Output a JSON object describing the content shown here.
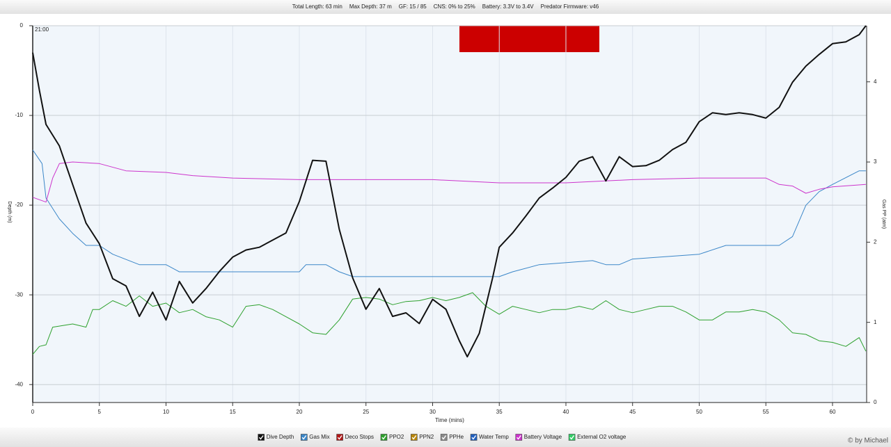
{
  "chart_data": {
    "type": "line",
    "header": [
      "Total Length: 63 min",
      "Max Depth: 37 m",
      "GF: 15 / 85",
      "CNS: 0% to 25%",
      "Battery: 3.3V to 3.4V",
      "Predator Firmware: v46"
    ],
    "start_time": "21:00",
    "xlabel": "Time (mins)",
    "ylabel": "Depth (m)",
    "y2label": "Gas PP (atm)",
    "xlim": [
      0,
      62.56
    ],
    "xticks": [
      0,
      5,
      10,
      15,
      20,
      25,
      30,
      35,
      40,
      45,
      50,
      55,
      60
    ],
    "ylim": [
      -42,
      0
    ],
    "yticks": [
      -40,
      -30,
      -20,
      -10,
      0
    ],
    "y2lim": [
      0,
      4.7
    ],
    "y2ticks": [
      0,
      1,
      2,
      3,
      4
    ],
    "grid": true,
    "series": [
      {
        "name": "Dive Depth",
        "color": "#111111",
        "x": [
          0,
          0.5,
          1,
          2,
          3,
          4,
          5,
          6,
          7,
          8,
          9,
          10,
          11,
          12,
          13,
          14,
          15,
          16,
          17,
          18,
          19,
          20,
          21,
          22,
          23,
          24,
          25,
          26,
          27,
          28,
          29,
          30,
          31,
          32,
          32.6,
          33.5,
          34.5,
          35,
          36,
          37,
          38,
          39,
          40,
          41,
          42,
          43,
          44,
          45,
          46,
          47,
          48,
          49,
          50,
          51,
          52,
          53,
          54,
          55,
          56,
          57,
          58,
          59,
          60,
          61,
          62,
          62.5
        ],
        "values": [
          -3,
          -7.2,
          -11,
          -13.4,
          -17.7,
          -22,
          -24.3,
          -28.2,
          -29,
          -32.4,
          -29.7,
          -32.8,
          -28.5,
          -30.9,
          -29.3,
          -27.4,
          -25.8,
          -25,
          -24.7,
          -23.9,
          -23.1,
          -19.6,
          -15,
          -15.1,
          -22.7,
          -28.1,
          -31.6,
          -29.3,
          -32.4,
          -32,
          -33.2,
          -30.5,
          -31.6,
          -35.1,
          -36.9,
          -34.3,
          -28.1,
          -24.7,
          -23.1,
          -21.2,
          -19.2,
          -18.1,
          -16.9,
          -15.1,
          -14.6,
          -17.3,
          -14.6,
          -15.7,
          -15.6,
          -15,
          -13.8,
          -13,
          -10.7,
          -9.7,
          -9.9,
          -9.7,
          -9.9,
          -10.3,
          -9.1,
          -6.3,
          -4.5,
          -3.2,
          -2,
          -1.8,
          -1,
          0
        ]
      },
      {
        "name": "Gas Mix",
        "color": "#3a86c8",
        "axis": "y2",
        "x": [
          0,
          0.7,
          1,
          2,
          3,
          4,
          5,
          6,
          8,
          10,
          11,
          20,
          20.5,
          22,
          23,
          24,
          35,
          36,
          38,
          42,
          43,
          44,
          45,
          50,
          52,
          55,
          56,
          57,
          58,
          59,
          60,
          62,
          62.5
        ],
        "values": [
          3.15,
          2.98,
          2.55,
          2.29,
          2.11,
          1.96,
          1.96,
          1.85,
          1.72,
          1.72,
          1.63,
          1.63,
          1.72,
          1.72,
          1.63,
          1.57,
          1.57,
          1.63,
          1.72,
          1.77,
          1.72,
          1.72,
          1.79,
          1.85,
          1.96,
          1.96,
          1.96,
          2.07,
          2.46,
          2.63,
          2.72,
          2.89,
          2.89
        ]
      },
      {
        "name": "Deco Stops",
        "color": "#b01818"
      },
      {
        "name": "PPO2",
        "color": "#2ca02c",
        "axis": "y2",
        "x": [
          0,
          0.5,
          1,
          1.5,
          3,
          4,
          4.5,
          5,
          6,
          7,
          8,
          9,
          10,
          11,
          12,
          13,
          14,
          15,
          16,
          17,
          18,
          19,
          20,
          21,
          22,
          23,
          24,
          25,
          26,
          27,
          28,
          29,
          30,
          31,
          32,
          33,
          34,
          35,
          36,
          37,
          38,
          39,
          40,
          41,
          42,
          43,
          44,
          45,
          46,
          47,
          48,
          49,
          50,
          51,
          52,
          53,
          54,
          55,
          56,
          57,
          58,
          59,
          60,
          61,
          62,
          62.5
        ],
        "values": [
          0.6,
          0.7,
          0.72,
          0.94,
          0.98,
          0.94,
          1.16,
          1.16,
          1.27,
          1.2,
          1.33,
          1.2,
          1.24,
          1.12,
          1.16,
          1.07,
          1.03,
          0.94,
          1.2,
          1.22,
          1.16,
          1.07,
          0.98,
          0.87,
          0.85,
          1.03,
          1.29,
          1.31,
          1.29,
          1.22,
          1.26,
          1.27,
          1.31,
          1.27,
          1.31,
          1.37,
          1.2,
          1.1,
          1.2,
          1.16,
          1.12,
          1.16,
          1.16,
          1.2,
          1.16,
          1.27,
          1.16,
          1.12,
          1.16,
          1.2,
          1.2,
          1.13,
          1.03,
          1.03,
          1.13,
          1.13,
          1.16,
          1.13,
          1.03,
          0.87,
          0.85,
          0.77,
          0.75,
          0.7,
          0.81,
          0.64
        ]
      },
      {
        "name": "PPN2",
        "color": "#b8860b"
      },
      {
        "name": "PPHe",
        "color": "#8a8a8a"
      },
      {
        "name": "Water Temp",
        "color": "#1f5fbf"
      },
      {
        "name": "Battery Voltage",
        "color": "#cc33cc",
        "axis": "y2",
        "x": [
          0,
          1,
          1.5,
          2,
          3,
          5,
          7,
          10,
          12,
          15,
          20,
          30,
          35,
          40,
          45,
          50,
          55,
          56,
          57,
          58,
          59,
          60,
          62.5
        ],
        "values": [
          2.56,
          2.5,
          2.8,
          2.98,
          3.0,
          2.98,
          2.89,
          2.87,
          2.83,
          2.8,
          2.78,
          2.78,
          2.74,
          2.74,
          2.78,
          2.8,
          2.8,
          2.72,
          2.7,
          2.61,
          2.66,
          2.69,
          2.72
        ]
      },
      {
        "name": "External O2 voltage",
        "color": "#33cc66"
      }
    ],
    "credit": "© by Michael"
  }
}
